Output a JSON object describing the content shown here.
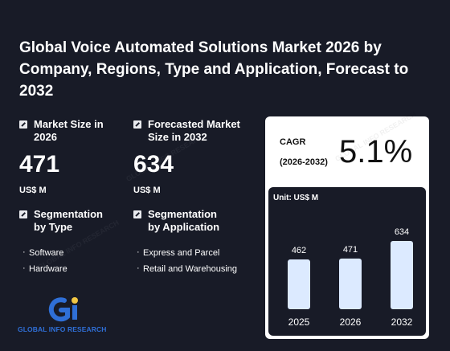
{
  "title": "Global Voice Automated Solutions Market 2026 by Company, Regions, Type and Application, Forecast to 2032",
  "market_size": {
    "label": "Market Size in 2026",
    "value": "471",
    "unit": "US$ M"
  },
  "forecast_size": {
    "label": "Forecasted Market Size in 2032",
    "value": "634",
    "unit": "US$ M"
  },
  "seg_type": {
    "label": "Segmentation by Type",
    "items": [
      "Software",
      "Hardware"
    ]
  },
  "seg_app": {
    "label": "Segmentation by Application",
    "items": [
      "Express and Parcel",
      "Retail and Warehousing"
    ]
  },
  "cagr": {
    "label": "CAGR",
    "period": "(2026-2032)",
    "value": "5.1%"
  },
  "logo": {
    "text": "GLOBAL INFO RESEARCH"
  },
  "watermark": "GLOBAL INFO RESEARCH",
  "colors": {
    "background": "#181b27",
    "bar": "#dceaff",
    "card": "#ffffff",
    "logo_blue": "#2f6fd6",
    "logo_yellow": "#f2c744"
  },
  "chart_data": {
    "type": "bar",
    "unit_label": "Unit: US$ M",
    "categories": [
      "2025",
      "2026",
      "2032"
    ],
    "values": [
      462,
      471,
      634
    ],
    "ylim": [
      0,
      634
    ],
    "grid": false,
    "legend": "none"
  }
}
